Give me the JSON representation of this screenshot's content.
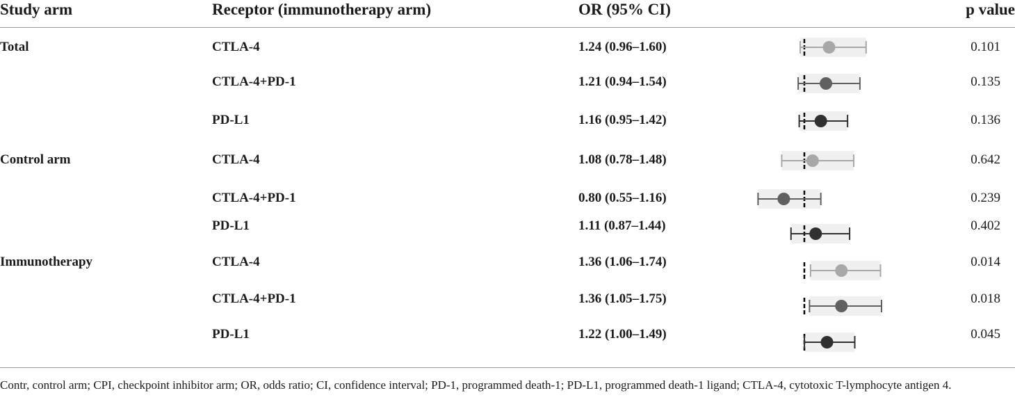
{
  "table": {
    "headers": {
      "study_arm": "Study arm",
      "receptor": "Receptor (immunotherapy arm)",
      "or": "OR (95% CI)",
      "p": "p value"
    },
    "groups": [
      {
        "label": "Total",
        "rows": [
          {
            "receptor": "CTLA-4",
            "or": "1.24 (0.96–1.60)",
            "p": "0.101"
          },
          {
            "receptor": "CTLA-4+PD-1",
            "or": "1.21 (0.94–1.54)",
            "p": "0.135"
          },
          {
            "receptor": "PD-L1",
            "or": "1.16 (0.95–1.42)",
            "p": "0.136"
          }
        ]
      },
      {
        "label": "Control arm",
        "rows": [
          {
            "receptor": "CTLA-4",
            "or": "1.08 (0.78–1.48)",
            "p": "0.642"
          },
          {
            "receptor": "CTLA-4+PD-1",
            "or": "0.80 (0.55–1.16)",
            "p": "0.239"
          },
          {
            "receptor": "PD-L1",
            "or": "1.11 (0.87–1.44)",
            "p": "0.402"
          }
        ]
      },
      {
        "label": "Immunotherapy",
        "rows": [
          {
            "receptor": "CTLA-4",
            "or": "1.36 (1.06–1.74)",
            "p": "0.014"
          },
          {
            "receptor": "CTLA-4+PD-1",
            "or": "1.36 (1.05–1.75)",
            "p": "0.018"
          },
          {
            "receptor": "PD-L1",
            "or": "1.22 (1.00–1.49)",
            "p": "0.045"
          }
        ]
      }
    ]
  },
  "chart_data": {
    "type": "forest",
    "reference_line": 1.0,
    "colors": {
      "CTLA-4": "#a8a8a8",
      "CTLA-4+PD-1": "#606060",
      "PD-L1": "#303030"
    },
    "rows": [
      {
        "group": "Total",
        "receptor": "CTLA-4",
        "or": 1.24,
        "lo": 0.96,
        "hi": 1.6
      },
      {
        "group": "Total",
        "receptor": "CTLA-4+PD-1",
        "or": 1.21,
        "lo": 0.94,
        "hi": 1.54
      },
      {
        "group": "Total",
        "receptor": "PD-L1",
        "or": 1.16,
        "lo": 0.95,
        "hi": 1.42
      },
      {
        "group": "Control arm",
        "receptor": "CTLA-4",
        "or": 1.08,
        "lo": 0.78,
        "hi": 1.48
      },
      {
        "group": "Control arm",
        "receptor": "CTLA-4+PD-1",
        "or": 0.8,
        "lo": 0.55,
        "hi": 1.16
      },
      {
        "group": "Control arm",
        "receptor": "PD-L1",
        "or": 1.11,
        "lo": 0.87,
        "hi": 1.44
      },
      {
        "group": "Immunotherapy",
        "receptor": "CTLA-4",
        "or": 1.36,
        "lo": 1.06,
        "hi": 1.74
      },
      {
        "group": "Immunotherapy",
        "receptor": "CTLA-4+PD-1",
        "or": 1.36,
        "lo": 1.05,
        "hi": 1.75
      },
      {
        "group": "Immunotherapy",
        "receptor": "PD-L1",
        "or": 1.22,
        "lo": 1.0,
        "hi": 1.49
      }
    ]
  },
  "footnote": "Contr, control arm; CPI, checkpoint inhibitor arm; OR, odds ratio; CI, confidence interval; PD-1, programmed death-1; PD-L1, programmed death-1 ligand; CTLA-4, cytotoxic T-lymphocyte antigen 4."
}
